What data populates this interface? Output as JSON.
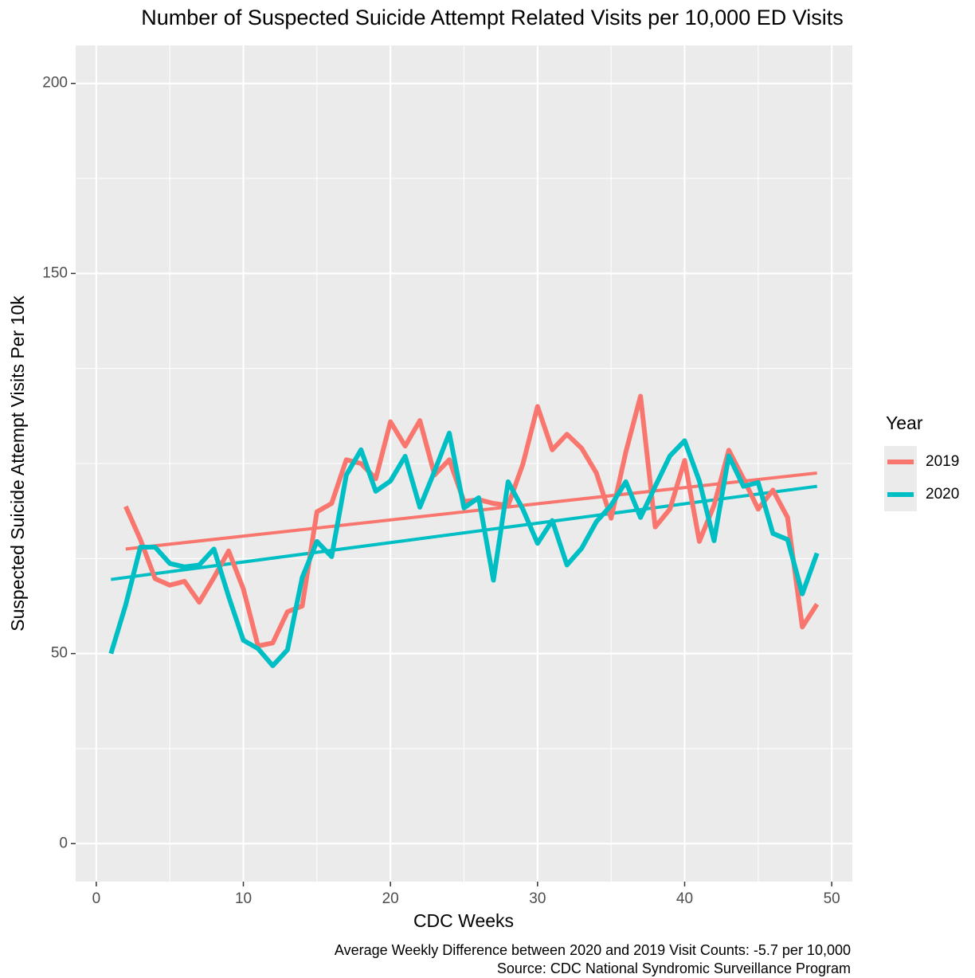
{
  "chart_data": {
    "type": "line",
    "title": "Number of Suspected Suicide Attempt Related Visits per 10,000 ED Visits",
    "x_label": "CDC Weeks",
    "y_label": "Suspected Suicide Attempt Visits Per 10k",
    "caption": [
      "Average Weekly Difference between 2020 and 2019 Visit Counts: -5.7 per 10,000",
      "Source: CDC National Syndromic Surveillance Program"
    ],
    "legend_title": "Year",
    "legend_position": "right",
    "grid": true,
    "xlim": [
      -1.4,
      51.4
    ],
    "xticks": [
      0,
      10,
      20,
      30,
      40,
      50
    ],
    "ylim": [
      -10,
      210
    ],
    "yticks": [
      0,
      50,
      150,
      200
    ],
    "series": [
      {
        "name": "2019",
        "color": "#f8766d",
        "x": [
          2,
          3,
          4,
          5,
          6,
          7,
          8,
          9,
          10,
          11,
          12,
          13,
          14,
          15,
          16,
          17,
          18,
          19,
          20,
          21,
          22,
          23,
          24,
          25,
          26,
          27,
          28,
          29,
          30,
          31,
          32,
          33,
          34,
          35,
          36,
          37,
          38,
          39,
          40,
          41,
          42,
          43,
          44,
          45,
          46,
          47,
          48,
          49
        ],
        "values": [
          88.7,
          80,
          69.7,
          68,
          69,
          63.5,
          70,
          77,
          67,
          52,
          52.8,
          61,
          62.5,
          87.3,
          89.5,
          101,
          100,
          96,
          111,
          104.6,
          111.3,
          97,
          101,
          90,
          90.5,
          89.5,
          89,
          99.8,
          115,
          103.6,
          107.7,
          104,
          97.5,
          85.6,
          103,
          117.7,
          83.3,
          88,
          100.8,
          79.5,
          89,
          103.5,
          96,
          88,
          93,
          85.8,
          57,
          63
        ],
        "trend": {
          "x": [
            2,
            49
          ],
          "values": [
            77.5,
            97.5
          ]
        }
      },
      {
        "name": "2020",
        "color": "#00bfc4",
        "x": [
          1,
          2,
          3,
          4,
          5,
          6,
          7,
          8,
          9,
          10,
          11,
          12,
          13,
          14,
          15,
          16,
          17,
          18,
          19,
          20,
          21,
          22,
          23,
          24,
          25,
          26,
          27,
          28,
          29,
          30,
          31,
          32,
          33,
          34,
          35,
          36,
          37,
          38,
          39,
          40,
          41,
          42,
          43,
          44,
          45,
          46,
          47,
          48,
          49
        ],
        "values": [
          50,
          62.8,
          78,
          78,
          73.7,
          72.8,
          73.3,
          77.5,
          65,
          53.5,
          51.3,
          46.8,
          51,
          70,
          79.5,
          75.5,
          97,
          103.6,
          92.7,
          95.4,
          101.9,
          88.5,
          98,
          108,
          88.3,
          91,
          69.3,
          95.2,
          88,
          79,
          85,
          73.3,
          77.7,
          84.7,
          89,
          95.2,
          85.8,
          94,
          102,
          106,
          95.4,
          79.7,
          102,
          94,
          95,
          81.6,
          80,
          65.7,
          76.4
        ],
        "trend": {
          "x": [
            1,
            49
          ],
          "values": [
            69.5,
            94
          ]
        }
      }
    ]
  }
}
